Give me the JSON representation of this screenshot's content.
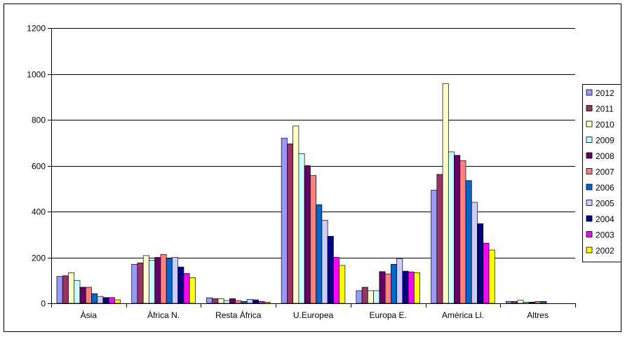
{
  "chart_data": {
    "type": "bar",
    "title": "",
    "xlabel": "",
    "ylabel": "",
    "ylim": [
      0,
      1200
    ],
    "yticks": [
      0,
      200,
      400,
      600,
      800,
      1000,
      1200
    ],
    "grid": "horizontal",
    "legend_position": "right",
    "categories": [
      "Àsia",
      "Àfrica N.",
      "Resta Àfrica",
      "U.Europea",
      "Europa E.",
      "Amèrica Ll.",
      "Altres"
    ],
    "series": [
      {
        "name": "2012",
        "color": "#9999FF",
        "values": [
          117,
          170,
          24,
          720,
          55,
          493,
          8
        ]
      },
      {
        "name": "2011",
        "color": "#993366",
        "values": [
          120,
          176,
          20,
          695,
          70,
          562,
          8
        ]
      },
      {
        "name": "2010",
        "color": "#FFFFCC",
        "values": [
          133,
          208,
          20,
          773,
          55,
          958,
          13
        ]
      },
      {
        "name": "2009",
        "color": "#CCFFFF",
        "values": [
          100,
          187,
          12,
          652,
          55,
          660,
          5
        ]
      },
      {
        "name": "2008",
        "color": "#660066",
        "values": [
          70,
          200,
          20,
          600,
          138,
          645,
          5
        ]
      },
      {
        "name": "2007",
        "color": "#FF8080",
        "values": [
          70,
          213,
          12,
          557,
          128,
          622,
          8
        ]
      },
      {
        "name": "2006",
        "color": "#0066CC",
        "values": [
          42,
          196,
          8,
          430,
          170,
          535,
          8
        ]
      },
      {
        "name": "2005",
        "color": "#CCCCFF",
        "values": [
          30,
          200,
          17,
          362,
          195,
          440,
          0
        ]
      },
      {
        "name": "2004",
        "color": "#000080",
        "values": [
          25,
          158,
          15,
          292,
          140,
          347,
          0
        ]
      },
      {
        "name": "2003",
        "color": "#FF00FF",
        "values": [
          25,
          130,
          8,
          200,
          137,
          262,
          0
        ]
      },
      {
        "name": "2002",
        "color": "#FFFF00",
        "values": [
          15,
          112,
          5,
          165,
          133,
          232,
          0
        ]
      }
    ]
  }
}
